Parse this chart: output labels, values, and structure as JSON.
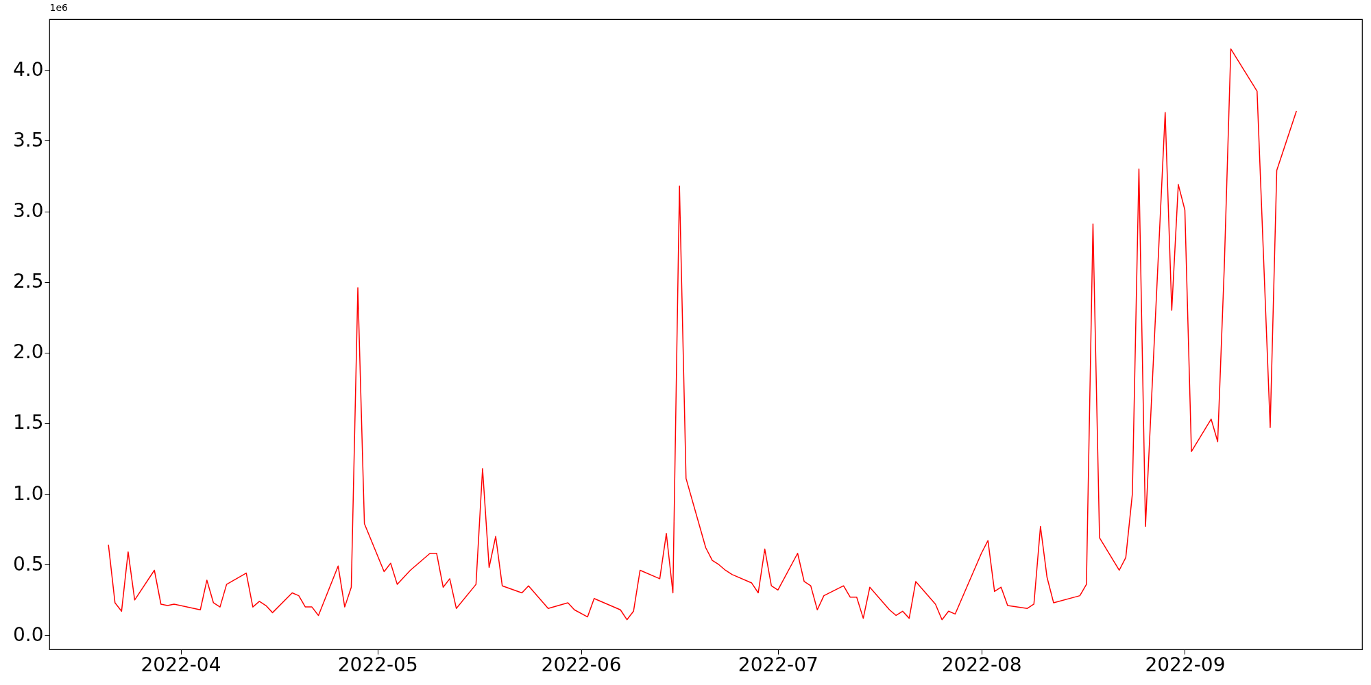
{
  "chart_data": {
    "type": "line",
    "ylabel": "1e6",
    "x": [
      "2022-03-21",
      "2022-03-22",
      "2022-03-23",
      "2022-03-24",
      "2022-03-25",
      "2022-03-28",
      "2022-03-29",
      "2022-03-30",
      "2022-03-31",
      "2022-04-04",
      "2022-04-05",
      "2022-04-06",
      "2022-04-07",
      "2022-04-08",
      "2022-04-11",
      "2022-04-12",
      "2022-04-13",
      "2022-04-14",
      "2022-04-15",
      "2022-04-18",
      "2022-04-19",
      "2022-04-20",
      "2022-04-21",
      "2022-04-22",
      "2022-04-25",
      "2022-04-26",
      "2022-04-27",
      "2022-04-28",
      "2022-04-29",
      "2022-05-02",
      "2022-05-03",
      "2022-05-04",
      "2022-05-06",
      "2022-05-09",
      "2022-05-10",
      "2022-05-11",
      "2022-05-12",
      "2022-05-13",
      "2022-05-16",
      "2022-05-17",
      "2022-05-18",
      "2022-05-19",
      "2022-05-20",
      "2022-05-23",
      "2022-05-24",
      "2022-05-27",
      "2022-05-30",
      "2022-05-31",
      "2022-06-02",
      "2022-06-03",
      "2022-06-07",
      "2022-06-08",
      "2022-06-09",
      "2022-06-10",
      "2022-06-13",
      "2022-06-14",
      "2022-06-15",
      "2022-06-16",
      "2022-06-17",
      "2022-06-20",
      "2022-06-21",
      "2022-06-22",
      "2022-06-23",
      "2022-06-24",
      "2022-06-27",
      "2022-06-28",
      "2022-06-29",
      "2022-06-30",
      "2022-07-01",
      "2022-07-04",
      "2022-07-05",
      "2022-07-06",
      "2022-07-07",
      "2022-07-08",
      "2022-07-11",
      "2022-07-12",
      "2022-07-13",
      "2022-07-14",
      "2022-07-15",
      "2022-07-18",
      "2022-07-19",
      "2022-07-20",
      "2022-07-21",
      "2022-07-22",
      "2022-07-25",
      "2022-07-26",
      "2022-07-27",
      "2022-07-28",
      "2022-08-01",
      "2022-08-02",
      "2022-08-03",
      "2022-08-04",
      "2022-08-05",
      "2022-08-08",
      "2022-08-09",
      "2022-08-10",
      "2022-08-11",
      "2022-08-12",
      "2022-08-16",
      "2022-08-17",
      "2022-08-18",
      "2022-08-19",
      "2022-08-22",
      "2022-08-23",
      "2022-08-24",
      "2022-08-25",
      "2022-08-26",
      "2022-08-29",
      "2022-08-30",
      "2022-08-31",
      "2022-09-01",
      "2022-09-02",
      "2022-09-05",
      "2022-09-06",
      "2022-09-07",
      "2022-09-08",
      "2022-09-12",
      "2022-09-14",
      "2022-09-15",
      "2022-09-18"
    ],
    "series": [
      {
        "color": "#ff0000",
        "values": [
          0.64,
          0.23,
          0.17,
          0.59,
          0.25,
          0.46,
          0.22,
          0.21,
          0.22,
          0.18,
          0.39,
          0.23,
          0.2,
          0.36,
          0.44,
          0.2,
          0.24,
          0.21,
          0.16,
          0.3,
          0.28,
          0.2,
          0.2,
          0.14,
          0.49,
          0.2,
          0.34,
          2.46,
          0.79,
          0.45,
          0.51,
          0.36,
          0.46,
          0.58,
          0.58,
          0.34,
          0.4,
          0.19,
          0.36,
          1.18,
          0.48,
          0.7,
          0.35,
          0.3,
          0.35,
          0.19,
          0.23,
          0.18,
          0.13,
          0.26,
          0.18,
          0.11,
          0.17,
          0.46,
          0.4,
          0.72,
          0.3,
          3.18,
          1.11,
          0.62,
          0.53,
          0.5,
          0.46,
          0.43,
          0.37,
          0.3,
          0.61,
          0.35,
          0.32,
          0.58,
          0.38,
          0.35,
          0.18,
          0.28,
          0.35,
          0.27,
          0.27,
          0.12,
          0.34,
          0.18,
          0.14,
          0.17,
          0.12,
          0.38,
          0.22,
          0.11,
          0.17,
          0.15,
          0.58,
          0.67,
          0.31,
          0.34,
          0.21,
          0.19,
          0.22,
          0.77,
          0.41,
          0.23,
          0.28,
          0.36,
          2.91,
          0.69,
          0.46,
          0.55,
          1.0,
          3.3,
          0.77,
          3.7,
          2.3,
          3.19,
          3.01,
          1.3,
          1.53,
          1.37,
          2.6,
          4.15,
          3.85,
          1.47,
          3.29,
          3.71
        ]
      }
    ],
    "xlim": [
      "2022-03-12",
      "2022-09-28"
    ],
    "xticks": [
      {
        "value": "2022-04-01",
        "label": "2022-04"
      },
      {
        "value": "2022-05-01",
        "label": "2022-05"
      },
      {
        "value": "2022-06-01",
        "label": "2022-06"
      },
      {
        "value": "2022-07-01",
        "label": "2022-07"
      },
      {
        "value": "2022-08-01",
        "label": "2022-08"
      },
      {
        "value": "2022-09-01",
        "label": "2022-09"
      }
    ],
    "ylim": [
      -0.1,
      4.36
    ],
    "yticks": [
      {
        "value": 0,
        "label": "0.0"
      },
      {
        "value": 0.5,
        "label": "0.5"
      },
      {
        "value": 1,
        "label": "1.0"
      },
      {
        "value": 1.5,
        "label": "1.5"
      },
      {
        "value": 2,
        "label": "2.0"
      },
      {
        "value": 2.5,
        "label": "2.5"
      },
      {
        "value": 3,
        "label": "3.0"
      },
      {
        "value": 3.5,
        "label": "3.5"
      },
      {
        "value": 4,
        "label": "4.0"
      }
    ],
    "marker": "none",
    "line_style": "solid"
  }
}
